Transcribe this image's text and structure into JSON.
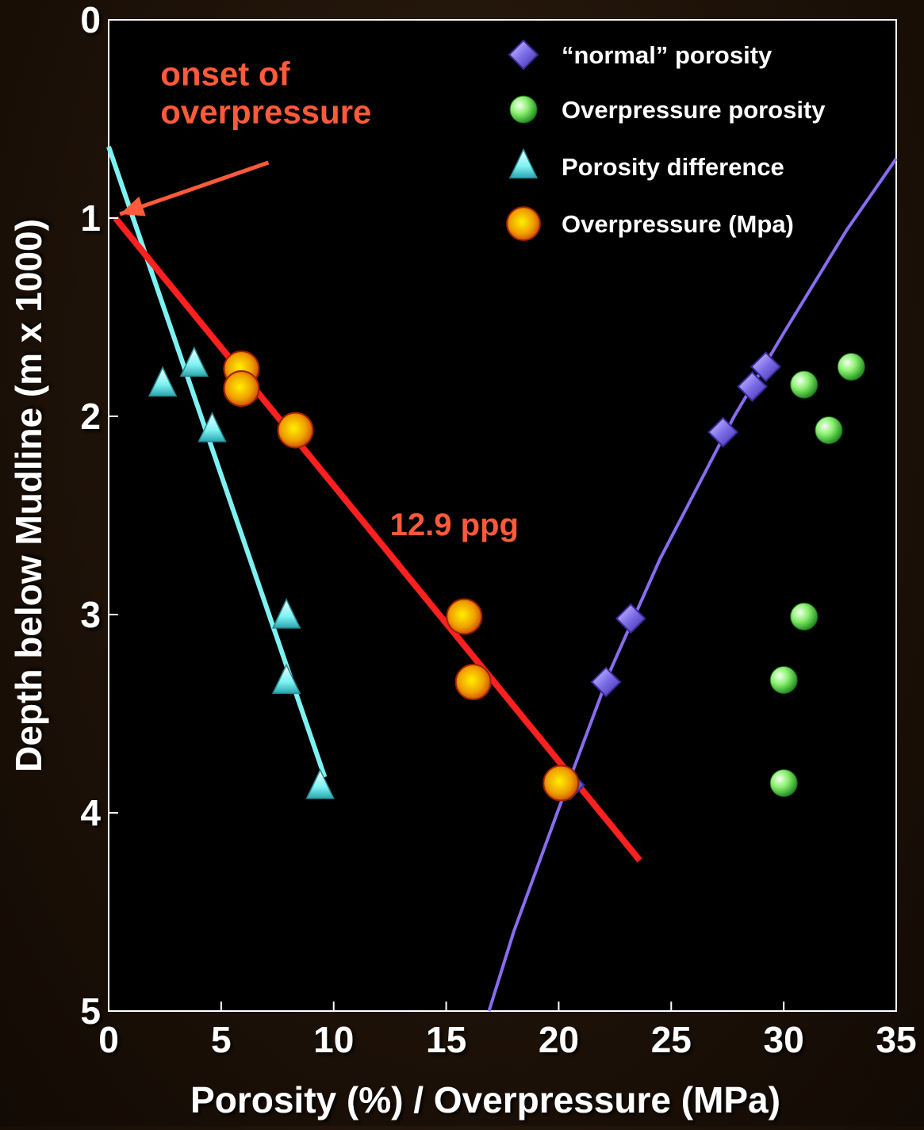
{
  "colors": {
    "plot_background": "#000000",
    "axis_text": "#ffffff",
    "normal_porosity": "#8a6cf0",
    "overpressure_porosity": "#6de35a",
    "porosity_difference": "#7ef2f2",
    "overpressure": "#f0a000",
    "overpressure_line": "#ff2020",
    "annotation": "#ff5a3a"
  },
  "chart_data": {
    "type": "scatter",
    "title": "",
    "xlabel": "Porosity (%) / Overpressure (MPa)",
    "ylabel": "Depth below Mudline (m x 1000)",
    "xlim": [
      0,
      35
    ],
    "ylim": [
      0,
      5
    ],
    "y_inverted": true,
    "xticks": [
      0,
      5,
      10,
      15,
      20,
      25,
      30,
      35
    ],
    "yticks": [
      0,
      1,
      2,
      3,
      4,
      5
    ],
    "grid": false,
    "legend_position": "top-right",
    "legend": [
      {
        "label": "“normal” porosity",
        "marker": "diamond",
        "series": "normal"
      },
      {
        "label": "Overpressure porosity",
        "marker": "circle",
        "series": "overporo"
      },
      {
        "label": "Porosity difference",
        "marker": "triangle",
        "series": "diff"
      },
      {
        "label": "Overpressure (Mpa)",
        "marker": "big-circle",
        "series": "pressure"
      }
    ],
    "series": [
      {
        "id": "normal",
        "marker": "diamond",
        "points": [
          [
            29.2,
            1.75
          ],
          [
            28.6,
            1.85
          ],
          [
            27.3,
            2.08
          ],
          [
            23.2,
            3.02
          ],
          [
            22.1,
            3.34
          ],
          [
            20.5,
            3.86
          ]
        ]
      },
      {
        "id": "overporo",
        "marker": "circle",
        "points": [
          [
            33.0,
            1.75
          ],
          [
            30.9,
            1.84
          ],
          [
            32.0,
            2.07
          ],
          [
            30.9,
            3.01
          ],
          [
            30.0,
            3.33
          ],
          [
            30.0,
            3.85
          ]
        ]
      },
      {
        "id": "diff",
        "marker": "triangle",
        "points": [
          [
            3.8,
            1.74
          ],
          [
            2.4,
            1.84
          ],
          [
            4.6,
            2.07
          ],
          [
            7.9,
            3.01
          ],
          [
            7.9,
            3.34
          ],
          [
            9.4,
            3.87
          ]
        ]
      },
      {
        "id": "pressure",
        "marker": "big-circle",
        "points": [
          [
            5.9,
            1.76
          ],
          [
            5.9,
            1.86
          ],
          [
            8.3,
            2.07
          ],
          [
            15.8,
            3.01
          ],
          [
            16.2,
            3.34
          ],
          [
            20.1,
            3.85
          ]
        ]
      }
    ],
    "lines": [
      {
        "id": "normal-trend",
        "color_key": "normal_porosity",
        "width": 4,
        "points": [
          [
            35.0,
            0.7
          ],
          [
            32.8,
            1.06
          ],
          [
            30.0,
            1.58
          ],
          [
            27.8,
            2.0
          ],
          [
            24.5,
            2.72
          ],
          [
            22.3,
            3.28
          ],
          [
            20.0,
            3.98
          ],
          [
            18.0,
            4.6
          ],
          [
            16.9,
            5.0
          ]
        ]
      },
      {
        "id": "diff-trend",
        "color_key": "porosity_difference",
        "width": 6,
        "points": [
          [
            0.0,
            0.64
          ],
          [
            9.6,
            3.82
          ]
        ]
      },
      {
        "id": "pressure-trend",
        "color_key": "overpressure_line",
        "width": 8,
        "points": [
          [
            0.3,
            1.0
          ],
          [
            23.6,
            4.24
          ]
        ]
      }
    ],
    "annotations": [
      {
        "id": "onset",
        "lines": [
          "onset of",
          "overpressure"
        ],
        "x": 2.3,
        "y": 0.33,
        "arrow_from": [
          7.1,
          0.72
        ],
        "arrow_to": [
          0.5,
          0.98
        ]
      },
      {
        "id": "ppg",
        "lines": [
          "12.9 ppg"
        ],
        "x": 12.5,
        "y": 2.6
      }
    ]
  }
}
